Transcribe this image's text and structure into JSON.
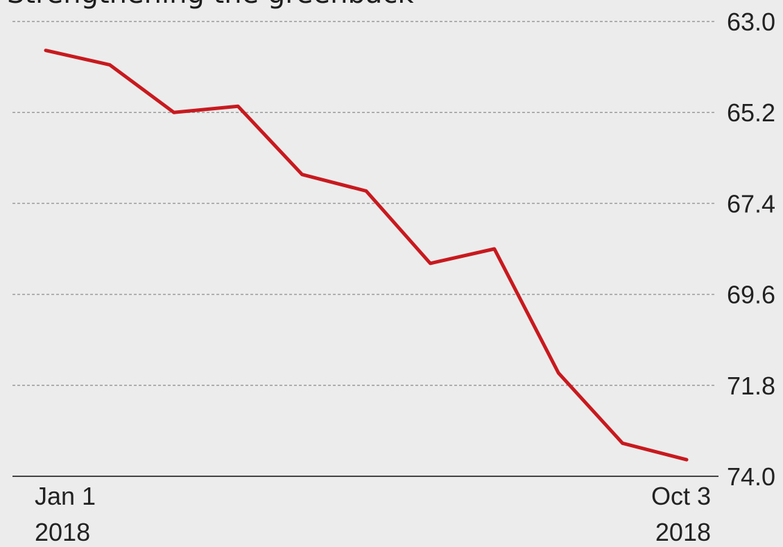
{
  "chart_data": {
    "type": "line",
    "title": "Strengthening the greenback",
    "xlabel": "",
    "ylabel": "",
    "y_axis": {
      "ticks": [
        "63.0",
        "65.2",
        "67.4",
        "69.6",
        "71.8",
        "74.0"
      ],
      "range": [
        63.0,
        74.0
      ],
      "inverted": true,
      "position": "right"
    },
    "x_axis": {
      "start": {
        "line1": "Jan 1",
        "line2": "2018"
      },
      "end": {
        "line1": "Oct 3",
        "line2": "2018"
      }
    },
    "grid": true,
    "series": [
      {
        "values": [
          63.7,
          64.05,
          65.2,
          65.05,
          66.7,
          67.1,
          68.85,
          68.5,
          71.5,
          73.2,
          73.6
        ]
      }
    ],
    "colors": {
      "line": "#c8191e",
      "grid": "#9a9a9a",
      "axis": "#444444",
      "background": "#ececec"
    }
  }
}
